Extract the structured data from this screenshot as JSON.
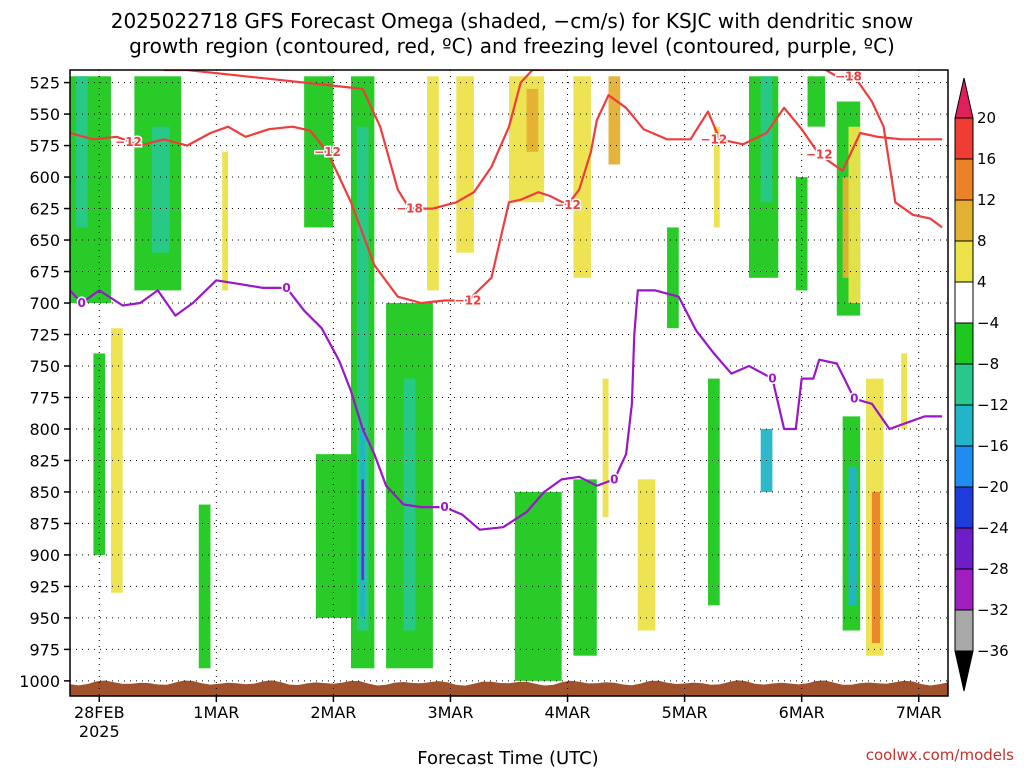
{
  "page": {
    "title_line1": "2025022718 GFS Forecast Omega (shaded, −cm/s) for KSJC with dendritic snow",
    "title_line2": "growth region (contoured, red, ºC) and freezing level (contoured, purple, ºC)",
    "xlabel": "Forecast Time (UTC)",
    "credit": "coolwx.com/models"
  },
  "chart_data": {
    "type": "heatmap",
    "x_start_label": "2025022718",
    "x_ticks": [
      {
        "day": 0.25,
        "label": "28FEB",
        "sublabel": "2025"
      },
      {
        "day": 1.25,
        "label": "1MAR",
        "sublabel": ""
      },
      {
        "day": 2.25,
        "label": "2MAR",
        "sublabel": ""
      },
      {
        "day": 3.25,
        "label": "3MAR",
        "sublabel": ""
      },
      {
        "day": 4.25,
        "label": "4MAR",
        "sublabel": ""
      },
      {
        "day": 5.25,
        "label": "5MAR",
        "sublabel": ""
      },
      {
        "day": 6.25,
        "label": "6MAR",
        "sublabel": ""
      },
      {
        "day": 7.25,
        "label": "7MAR",
        "sublabel": ""
      }
    ],
    "x_range_days": [
      0,
      7.5
    ],
    "y_ticks": [
      525,
      550,
      575,
      600,
      625,
      650,
      675,
      700,
      725,
      750,
      775,
      800,
      825,
      850,
      875,
      900,
      925,
      950,
      975,
      1000
    ],
    "y_range_hpa": [
      515,
      1012
    ],
    "colorbar": {
      "labels": [
        "20",
        "16",
        "12",
        "8",
        "4",
        "−4",
        "−8",
        "−12",
        "−16",
        "−20",
        "−24",
        "−28",
        "−32",
        "−36"
      ],
      "colors": [
        "#e0205a",
        "#f03c32",
        "#ec8228",
        "#e4b032",
        "#ece24a",
        "#ffffff",
        "#1ec81e",
        "#28c88c",
        "#22b4c8",
        "#1e8cf0",
        "#1e3cdc",
        "#6e1ec8",
        "#a01ec0",
        "#a8a8a8",
        "#000000"
      ]
    },
    "freezing_level": {
      "label": "0",
      "color": "#9a16c8",
      "label_positions": [
        [
          0.1,
          700
        ],
        [
          1.85,
          688
        ],
        [
          3.2,
          862
        ],
        [
          4.65,
          840
        ],
        [
          6.0,
          760
        ],
        [
          6.7,
          776
        ]
      ],
      "points": [
        [
          0,
          690
        ],
        [
          0.1,
          700
        ],
        [
          0.25,
          690
        ],
        [
          0.45,
          702
        ],
        [
          0.6,
          700
        ],
        [
          0.75,
          690
        ],
        [
          0.9,
          710
        ],
        [
          1.05,
          700
        ],
        [
          1.25,
          682
        ],
        [
          1.45,
          685
        ],
        [
          1.65,
          688
        ],
        [
          1.85,
          688
        ],
        [
          2.0,
          706
        ],
        [
          2.15,
          720
        ],
        [
          2.3,
          746
        ],
        [
          2.4,
          770
        ],
        [
          2.5,
          800
        ],
        [
          2.6,
          820
        ],
        [
          2.7,
          845
        ],
        [
          2.85,
          860
        ],
        [
          3.0,
          862
        ],
        [
          3.2,
          862
        ],
        [
          3.35,
          868
        ],
        [
          3.5,
          880
        ],
        [
          3.7,
          878
        ],
        [
          3.9,
          866
        ],
        [
          4.05,
          850
        ],
        [
          4.2,
          840
        ],
        [
          4.35,
          838
        ],
        [
          4.5,
          845
        ],
        [
          4.65,
          840
        ],
        [
          4.75,
          820
        ],
        [
          4.8,
          780
        ],
        [
          4.82,
          725
        ],
        [
          4.85,
          690
        ],
        [
          5.0,
          690
        ],
        [
          5.2,
          695
        ],
        [
          5.35,
          722
        ],
        [
          5.5,
          740
        ],
        [
          5.65,
          756
        ],
        [
          5.8,
          750
        ],
        [
          6.0,
          760
        ],
        [
          6.1,
          800
        ],
        [
          6.2,
          800
        ],
        [
          6.25,
          760
        ],
        [
          6.35,
          760
        ],
        [
          6.4,
          745
        ],
        [
          6.55,
          748
        ],
        [
          6.7,
          776
        ],
        [
          6.85,
          780
        ],
        [
          7.0,
          800
        ],
        [
          7.15,
          795
        ],
        [
          7.3,
          790
        ],
        [
          7.45,
          790
        ]
      ]
    },
    "dgz_contours": [
      {
        "label": "−12",
        "color": "#f03c3c",
        "label_positions": [
          [
            0.5,
            572
          ],
          [
            2.2,
            580
          ],
          [
            3.4,
            698
          ],
          [
            4.25,
            622
          ],
          [
            5.5,
            570
          ],
          [
            6.4,
            582
          ]
        ],
        "points": [
          [
            0,
            565
          ],
          [
            0.2,
            570
          ],
          [
            0.4,
            568
          ],
          [
            0.6,
            575
          ],
          [
            0.8,
            570
          ],
          [
            1.0,
            575
          ],
          [
            1.2,
            565
          ],
          [
            1.35,
            560
          ],
          [
            1.5,
            568
          ],
          [
            1.7,
            562
          ],
          [
            1.9,
            560
          ],
          [
            2.05,
            563
          ],
          [
            2.2,
            580
          ],
          [
            2.3,
            600
          ],
          [
            2.4,
            620
          ],
          [
            2.5,
            645
          ],
          [
            2.6,
            670
          ],
          [
            2.8,
            695
          ],
          [
            3.0,
            700
          ],
          [
            3.2,
            698
          ],
          [
            3.4,
            698
          ],
          [
            3.6,
            680
          ],
          [
            3.7,
            640
          ],
          [
            3.75,
            620
          ],
          [
            3.85,
            618
          ],
          [
            4.0,
            612
          ],
          [
            4.1,
            615
          ],
          [
            4.25,
            622
          ],
          [
            4.35,
            610
          ],
          [
            4.45,
            580
          ],
          [
            4.5,
            555
          ],
          [
            4.6,
            535
          ],
          [
            4.75,
            545
          ],
          [
            4.9,
            562
          ],
          [
            5.1,
            570
          ],
          [
            5.3,
            570
          ],
          [
            5.45,
            548
          ],
          [
            5.55,
            570
          ],
          [
            5.75,
            574
          ],
          [
            5.95,
            565
          ],
          [
            6.1,
            545
          ],
          [
            6.25,
            562
          ],
          [
            6.4,
            582
          ],
          [
            6.6,
            595
          ],
          [
            6.75,
            565
          ],
          [
            6.9,
            568
          ],
          [
            7.1,
            570
          ],
          [
            7.3,
            570
          ],
          [
            7.45,
            570
          ]
        ]
      },
      {
        "label": "−18",
        "color": "#f03c3c",
        "label_positions": [
          [
            2.9,
            625
          ],
          [
            6.65,
            520
          ]
        ],
        "points": [
          [
            0.8,
            515
          ],
          [
            1.0,
            515
          ],
          [
            2.5,
            530
          ],
          [
            2.65,
            560
          ],
          [
            2.8,
            610
          ],
          [
            2.9,
            625
          ],
          [
            3.1,
            625
          ],
          [
            3.3,
            620
          ],
          [
            3.45,
            612
          ],
          [
            3.6,
            592
          ],
          [
            3.75,
            560
          ],
          [
            3.85,
            525
          ],
          [
            3.95,
            515
          ],
          [
            6.4,
            512
          ],
          [
            6.55,
            520
          ],
          [
            6.7,
            520
          ],
          [
            6.85,
            540
          ],
          [
            6.95,
            560
          ],
          [
            7.05,
            620
          ],
          [
            7.2,
            630
          ],
          [
            7.35,
            633
          ],
          [
            7.45,
            640
          ]
        ]
      }
    ]
  }
}
